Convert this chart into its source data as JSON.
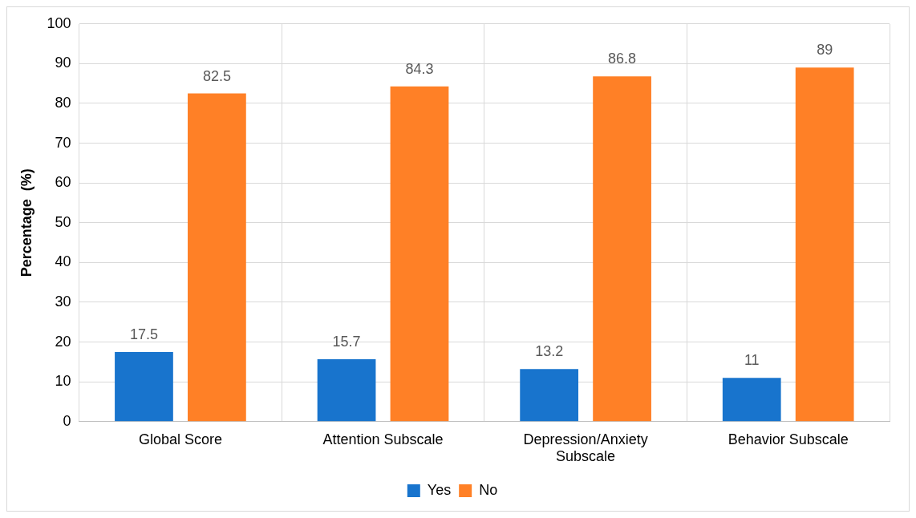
{
  "chart_data": {
    "type": "bar",
    "ylabel": "Percentage  (%)",
    "categories": [
      "Global Score",
      "Attention Subscale",
      "Depression/Anxiety Subscale",
      "Behavior Subscale"
    ],
    "series": [
      {
        "name": "Yes",
        "color": "#1874cd",
        "values": [
          17.5,
          15.7,
          13.2,
          11
        ]
      },
      {
        "name": "No",
        "color": "#ff8026",
        "values": [
          82.5,
          84.3,
          86.8,
          89
        ]
      }
    ],
    "ylim": [
      0,
      100
    ],
    "yticks": [
      0,
      10,
      20,
      30,
      40,
      50,
      60,
      70,
      80,
      90,
      100
    ],
    "grid": true,
    "legend": "bottom",
    "data_labels": true
  }
}
